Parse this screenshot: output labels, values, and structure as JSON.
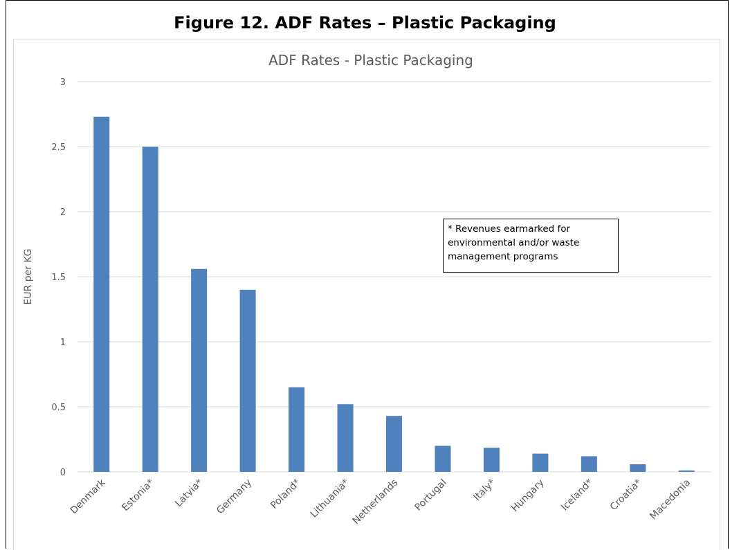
{
  "figure_title": "Figure 12. ADF Rates – Plastic Packaging",
  "note": {
    "marker": "*",
    "text": "Revenues earmarked for environmental and/or waste management programs"
  },
  "colors": {
    "bar": "#4f81bd",
    "grid": "#d9d9d9",
    "text": "#595959"
  },
  "chart_data": {
    "type": "bar",
    "title": "ADF Rates - Plastic Packaging",
    "xlabel": "",
    "ylabel": "EUR per KG",
    "ylim": [
      0,
      3
    ],
    "yticks": [
      0,
      0.5,
      1,
      1.5,
      2,
      2.5,
      3
    ],
    "ytick_labels": [
      "0",
      "0.5",
      "1",
      "1.5",
      "2",
      "2.5",
      "3"
    ],
    "grid": true,
    "legend": "none",
    "categories": [
      "Denmark",
      "Estonia*",
      "Latvia*",
      "Germany",
      "Poland*",
      "Lithuania*",
      "Netherlands",
      "Portugal",
      "Italy*",
      "Hungary",
      "Iceland*",
      "Croatia*",
      "Macedonia"
    ],
    "values": [
      2.73,
      2.5,
      1.56,
      1.4,
      0.65,
      0.52,
      0.43,
      0.2,
      0.185,
      0.14,
      0.12,
      0.058,
      0.01
    ]
  }
}
